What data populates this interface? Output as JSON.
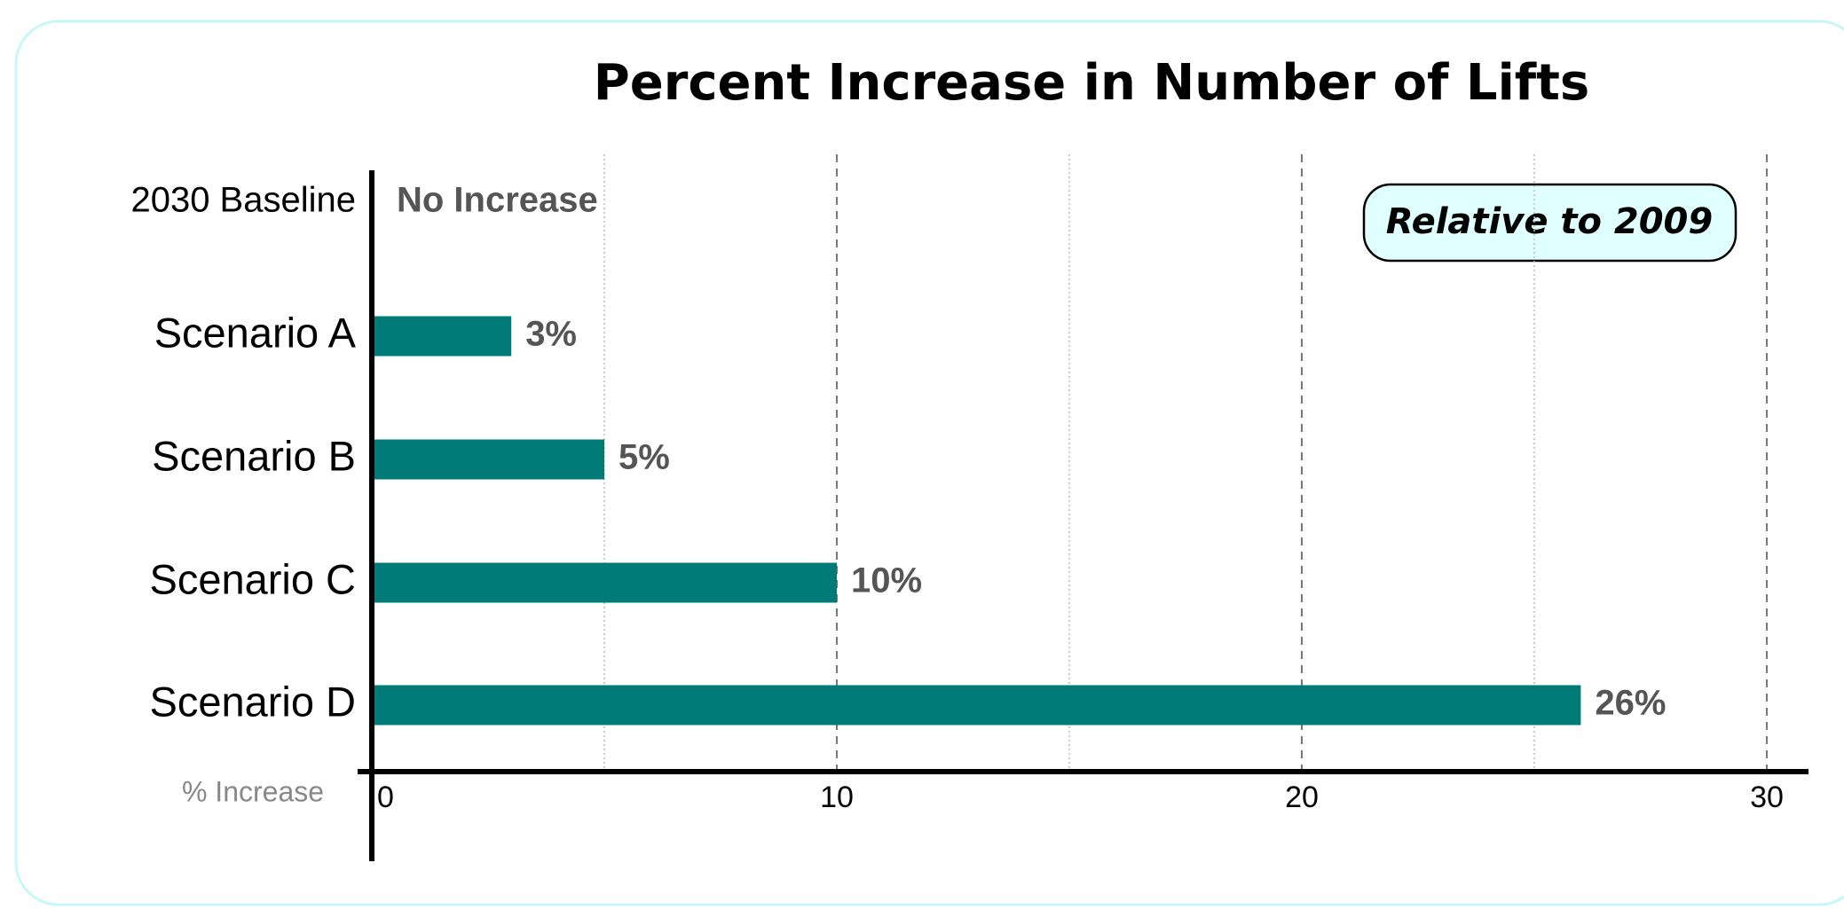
{
  "chart_data": {
    "type": "bar",
    "orientation": "horizontal",
    "title": "Percent Increase in Number of Lifts",
    "annotation": "Relative to 2009",
    "x_label": "% Increase",
    "categories": [
      "2030 Baseline",
      "Scenario A",
      "Scenario B",
      "Scenario C",
      "Scenario D"
    ],
    "values": [
      0,
      3,
      5,
      10,
      26
    ],
    "value_labels": [
      "No Increase",
      "3%",
      "5%",
      "10%",
      "26%"
    ],
    "color": "#007b78",
    "xlim": [
      0,
      30
    ],
    "xticks": [
      0,
      10,
      20,
      30
    ],
    "x_minor_ticks": [
      5,
      15,
      25
    ],
    "grid": true
  }
}
